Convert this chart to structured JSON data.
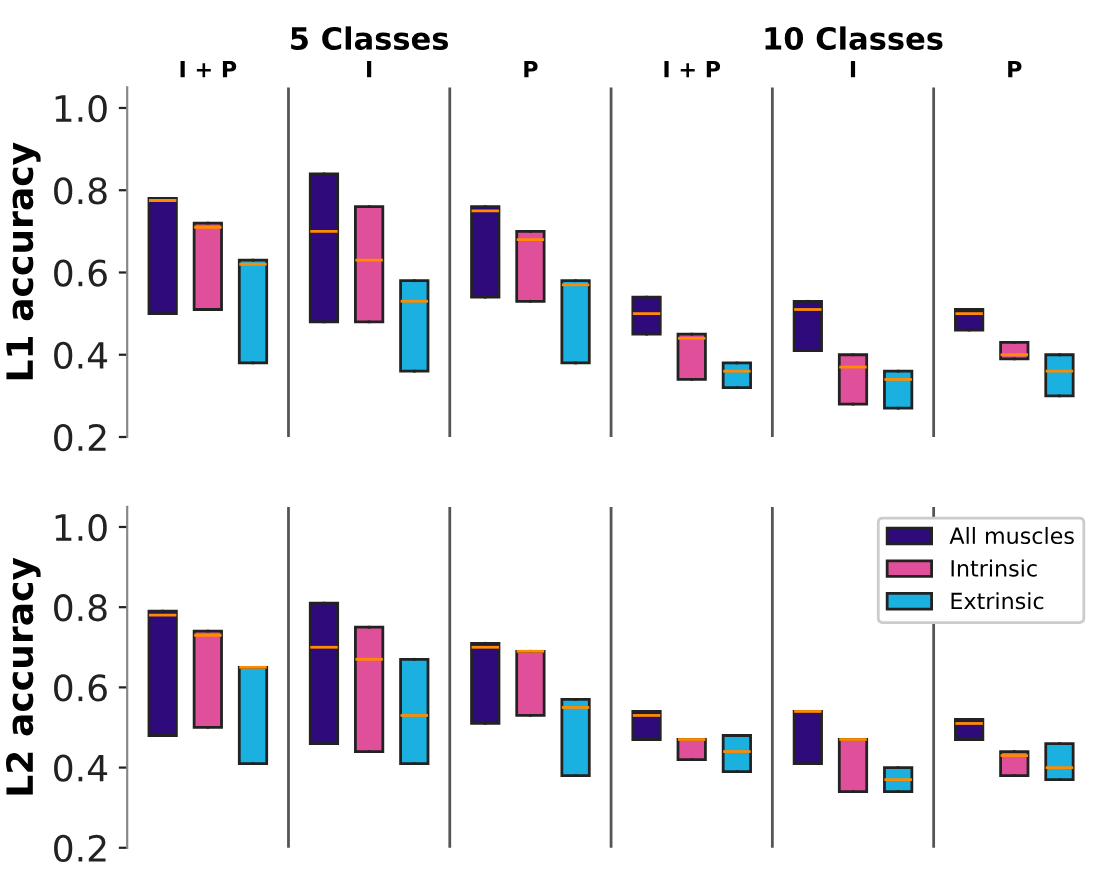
{
  "chart_data": [
    {
      "type": "box",
      "ylabel": "L1 accuracy",
      "categories": [
        "I + P",
        "I",
        "P",
        "I + P",
        "I",
        "P"
      ],
      "annotations": [
        "5 Classes",
        "10 Classes"
      ],
      "ylim": [
        0.2,
        1.05
      ],
      "yticks": [
        0.2,
        0.4,
        0.6,
        0.8,
        {
          "value": 1,
          "label": "1.0"
        }
      ],
      "grid": false,
      "series": [
        {
          "color": "#2e0a7a",
          "boxes": [
            {
              "low": 0.5,
              "q1": 0.5,
              "median": 0.775,
              "q3": 0.78,
              "high": 0.78
            },
            {
              "low": 0.48,
              "q1": 0.48,
              "median": 0.7,
              "q3": 0.84,
              "high": 0.84
            },
            {
              "low": 0.54,
              "q1": 0.54,
              "median": 0.75,
              "q3": 0.76,
              "high": 0.76
            },
            {
              "low": 0.45,
              "q1": 0.45,
              "median": 0.5,
              "q3": 0.54,
              "high": 0.54
            },
            {
              "low": 0.41,
              "q1": 0.41,
              "median": 0.51,
              "q3": 0.53,
              "high": 0.53
            },
            {
              "low": 0.46,
              "q1": 0.46,
              "median": 0.5,
              "q3": 0.51,
              "high": 0.51
            }
          ]
        },
        {
          "color": "#e0509a",
          "boxes": [
            {
              "low": 0.51,
              "q1": 0.51,
              "median": 0.71,
              "q3": 0.72,
              "high": 0.72
            },
            {
              "low": 0.48,
              "q1": 0.48,
              "median": 0.63,
              "q3": 0.76,
              "high": 0.76
            },
            {
              "low": 0.53,
              "q1": 0.53,
              "median": 0.68,
              "q3": 0.7,
              "high": 0.7
            },
            {
              "low": 0.34,
              "q1": 0.34,
              "median": 0.44,
              "q3": 0.45,
              "high": 0.45
            },
            {
              "low": 0.28,
              "q1": 0.28,
              "median": 0.37,
              "q3": 0.4,
              "high": 0.4
            },
            {
              "low": 0.39,
              "q1": 0.39,
              "median": 0.4,
              "q3": 0.43,
              "high": 0.43
            }
          ]
        },
        {
          "color": "#1ab0e0",
          "boxes": [
            {
              "low": 0.38,
              "q1": 0.38,
              "median": 0.62,
              "q3": 0.63,
              "high": 0.63
            },
            {
              "low": 0.36,
              "q1": 0.36,
              "median": 0.53,
              "q3": 0.58,
              "high": 0.58
            },
            {
              "low": 0.38,
              "q1": 0.38,
              "median": 0.57,
              "q3": 0.58,
              "high": 0.58
            },
            {
              "low": 0.32,
              "q1": 0.32,
              "median": 0.36,
              "q3": 0.38,
              "high": 0.38
            },
            {
              "low": 0.27,
              "q1": 0.27,
              "median": 0.34,
              "q3": 0.36,
              "high": 0.36
            },
            {
              "low": 0.3,
              "q1": 0.3,
              "median": 0.36,
              "q3": 0.4,
              "high": 0.4
            }
          ]
        }
      ]
    },
    {
      "type": "box",
      "ylabel": "L2 accuracy",
      "categories": [
        null,
        null,
        null,
        null,
        null,
        null
      ],
      "ylim": [
        0.2,
        1.05
      ],
      "yticks": [
        0.2,
        0.4,
        0.6,
        0.8,
        {
          "value": 1,
          "label": "1.0"
        }
      ],
      "grid": false,
      "legend": "top right",
      "series": [
        {
          "name": "All muscles",
          "color": "#2e0a7a",
          "boxes": [
            {
              "low": 0.48,
              "q1": 0.48,
              "median": 0.78,
              "q3": 0.79,
              "high": 0.79
            },
            {
              "low": 0.46,
              "q1": 0.46,
              "median": 0.7,
              "q3": 0.81,
              "high": 0.81
            },
            {
              "low": 0.51,
              "q1": 0.51,
              "median": 0.7,
              "q3": 0.71,
              "high": 0.71
            },
            {
              "low": 0.47,
              "q1": 0.47,
              "median": 0.53,
              "q3": 0.54,
              "high": 0.54
            },
            {
              "low": 0.41,
              "q1": 0.41,
              "median": 0.54,
              "q3": 0.54,
              "high": 0.54
            },
            {
              "low": 0.47,
              "q1": 0.47,
              "median": 0.51,
              "q3": 0.52,
              "high": 0.52
            }
          ]
        },
        {
          "name": "Intrinsic",
          "color": "#e0509a",
          "boxes": [
            {
              "low": 0.5,
              "q1": 0.5,
              "median": 0.73,
              "q3": 0.74,
              "high": 0.74
            },
            {
              "low": 0.44,
              "q1": 0.44,
              "median": 0.67,
              "q3": 0.75,
              "high": 0.75
            },
            {
              "low": 0.53,
              "q1": 0.53,
              "median": 0.69,
              "q3": 0.69,
              "high": 0.69
            },
            {
              "low": 0.42,
              "q1": 0.42,
              "median": 0.47,
              "q3": 0.47,
              "high": 0.47
            },
            {
              "low": 0.34,
              "q1": 0.34,
              "median": 0.47,
              "q3": 0.47,
              "high": 0.47
            },
            {
              "low": 0.38,
              "q1": 0.38,
              "median": 0.43,
              "q3": 0.44,
              "high": 0.44
            }
          ]
        },
        {
          "name": "Extrinsic",
          "color": "#1ab0e0",
          "boxes": [
            {
              "low": 0.41,
              "q1": 0.41,
              "median": 0.65,
              "q3": 0.65,
              "high": 0.65
            },
            {
              "low": 0.41,
              "q1": 0.41,
              "median": 0.53,
              "q3": 0.67,
              "high": 0.67
            },
            {
              "low": 0.38,
              "q1": 0.38,
              "median": 0.55,
              "q3": 0.57,
              "high": 0.57
            },
            {
              "low": 0.39,
              "q1": 0.39,
              "median": 0.44,
              "q3": 0.48,
              "high": 0.48
            },
            {
              "low": 0.34,
              "q1": 0.34,
              "median": 0.37,
              "q3": 0.4,
              "high": 0.4
            },
            {
              "low": 0.37,
              "q1": 0.37,
              "median": 0.4,
              "q3": 0.46,
              "high": 0.46
            }
          ]
        }
      ]
    }
  ]
}
